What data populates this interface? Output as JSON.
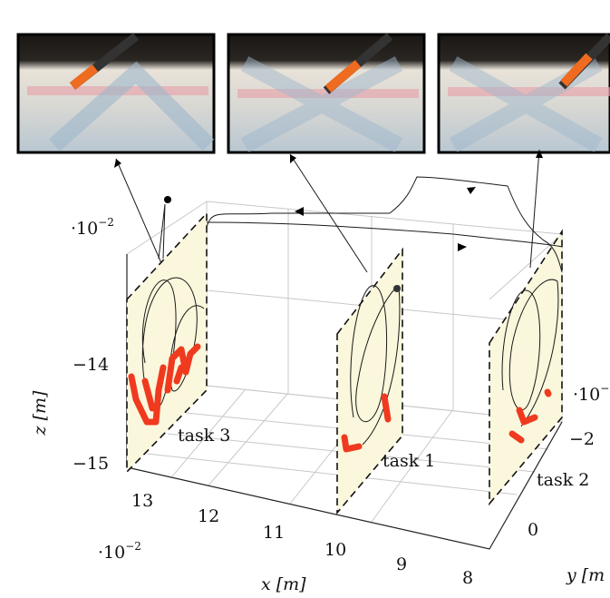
{
  "figure": {
    "z_axis": {
      "label": "z [m]",
      "scale": {
        "base": "·10",
        "exp": "−2"
      },
      "ticks": [
        "−14",
        "−15"
      ]
    },
    "x_axis": {
      "label": "x [m]",
      "scale": {
        "base": "·10",
        "exp": "−2"
      },
      "ticks": [
        "13",
        "12",
        "11",
        "10",
        "9",
        "8"
      ]
    },
    "y_axis": {
      "label": "y [m",
      "scale": {
        "base": "·10",
        "exp": "−"
      },
      "ticks": [
        "−2",
        "0"
      ]
    },
    "tasks": [
      "task 3",
      "task 1",
      "task 2"
    ]
  }
}
